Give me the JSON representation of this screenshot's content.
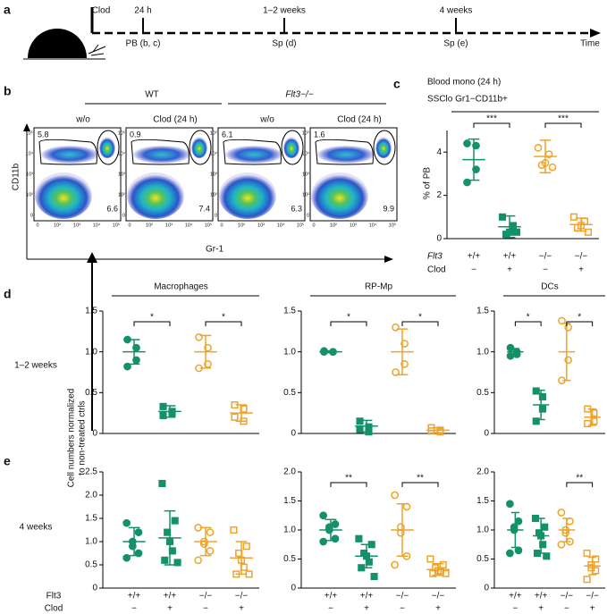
{
  "panel_labels": [
    "a",
    "b",
    "c",
    "d",
    "e"
  ],
  "timeline": {
    "top_labels": [
      "Clod",
      "24 h",
      "1–2 weeks",
      "4 weeks"
    ],
    "bottom_labels": [
      "PB (b, c)",
      "Sp (d)",
      "Sp (e)",
      "Time"
    ]
  },
  "flow": {
    "groups": [
      "WT",
      "Flt3−/−"
    ],
    "conditions": [
      "w/o",
      "Clod (24 h)",
      "w/o",
      "Clod (24 h)"
    ],
    "gates": [
      [
        5.8,
        6.6
      ],
      [
        0.9,
        7.4
      ],
      [
        6.1,
        6.3
      ],
      [
        1.6,
        9.9
      ]
    ],
    "y_label": "CD11b",
    "x_label": "Gr-1",
    "x_ticks": [
      "0",
      "10²",
      "10³",
      "10⁴",
      "10⁵"
    ],
    "y_ticks": [
      "10⁵",
      "10⁴",
      "10³",
      "10²",
      "0"
    ]
  },
  "row_labels": [
    "1–2 weeks",
    "4 weeks"
  ],
  "y_label_lines": [
    "Cell numbers normalized",
    "to non-treated ctrls"
  ],
  "x_row_names": [
    "Flt3",
    "Clod"
  ],
  "chart_data": [
    {
      "type": "scatter",
      "title": "Blood mono (24 h)",
      "subtitle": "SSClo Gr1−CD11b+",
      "y_label": "% of PB",
      "ylim": [
        0,
        5
      ],
      "yticks": [
        0,
        2,
        4
      ],
      "x_row_names": [
        "Flt3",
        "Clod"
      ],
      "x_labels": [
        [
          "+/+",
          "+/+",
          "−/−",
          "−/−"
        ],
        [
          "−",
          "+",
          "−",
          "+"
        ]
      ],
      "series": [
        {
          "color": "#14906a",
          "marker": "circle",
          "filled": true,
          "values": [
            4.4,
            4.3,
            3.2,
            2.6
          ],
          "mean": 3.65,
          "sd": 0.95
        },
        {
          "color": "#14906a",
          "marker": "square",
          "filled": true,
          "values": [
            1.0,
            0.6,
            0.3,
            0.2,
            0.3
          ],
          "mean": 0.55,
          "sd": 0.5
        },
        {
          "color": "#f0a32a",
          "marker": "circle",
          "filled": false,
          "values": [
            4.2,
            3.9,
            3.5,
            3.4,
            3.3
          ],
          "mean": 3.8,
          "sd": 0.75
        },
        {
          "color": "#f0a32a",
          "marker": "square",
          "filled": false,
          "values": [
            1.0,
            0.8,
            0.6,
            0.5,
            0.3
          ],
          "mean": 0.65,
          "sd": 0.3
        }
      ],
      "brackets": [
        {
          "groups": [
            0,
            1
          ],
          "label": "***"
        },
        {
          "groups": [
            2,
            3
          ],
          "label": "***"
        }
      ]
    },
    {
      "type": "scatter",
      "title": "Macrophages",
      "ylim": [
        0,
        1.5
      ],
      "yticks": [
        0,
        0.5,
        {
          "value": 1,
          "label": "1.0"
        },
        1.5
      ],
      "series": [
        {
          "color": "#14906a",
          "marker": "circle",
          "filled": true,
          "values": [
            1.15,
            1.05,
            0.9,
            0.82
          ],
          "mean": 1.0,
          "sd": 0.15
        },
        {
          "color": "#14906a",
          "marker": "square",
          "filled": true,
          "values": [
            0.33,
            0.27,
            0.25,
            0.22
          ],
          "mean": 0.27,
          "sd": 0.07
        },
        {
          "color": "#f0a32a",
          "marker": "circle",
          "filled": false,
          "values": [
            1.18,
            1.05,
            0.85,
            0.8
          ],
          "mean": 1.0,
          "sd": 0.2
        },
        {
          "color": "#f0a32a",
          "marker": "square",
          "filled": false,
          "values": [
            0.35,
            0.3,
            0.15,
            0.2
          ],
          "mean": 0.25,
          "sd": 0.1
        }
      ],
      "brackets": [
        {
          "groups": [
            0,
            1
          ],
          "label": "*"
        },
        {
          "groups": [
            2,
            3
          ],
          "label": "*"
        }
      ]
    },
    {
      "type": "scatter",
      "title": "RP-Mp",
      "ylim": [
        0,
        1.5
      ],
      "yticks": [
        0,
        0.5,
        {
          "value": 1,
          "label": "1.0"
        },
        1.5
      ],
      "series": [
        {
          "color": "#14906a",
          "marker": "circle",
          "filled": true,
          "values": [
            1.0,
            1.0,
            1.0,
            1.01
          ],
          "mean": 1.0,
          "sd": 0.01
        },
        {
          "color": "#14906a",
          "marker": "square",
          "filled": true,
          "values": [
            0.15,
            0.08,
            0.02,
            0.05
          ],
          "mean": 0.09,
          "sd": 0.07
        },
        {
          "color": "#f0a32a",
          "marker": "circle",
          "filled": false,
          "values": [
            1.3,
            1.1,
            0.85,
            0.75
          ],
          "mean": 1.0,
          "sd": 0.28
        },
        {
          "color": "#f0a32a",
          "marker": "square",
          "filled": false,
          "values": [
            0.07,
            0.04,
            0.02,
            0.03
          ],
          "mean": 0.04,
          "sd": 0.03
        }
      ],
      "brackets": [
        {
          "groups": [
            0,
            1
          ],
          "label": "*"
        },
        {
          "groups": [
            2,
            3
          ],
          "label": "*"
        }
      ]
    },
    {
      "type": "scatter",
      "title": "DCs",
      "ylim": [
        0,
        1.5
      ],
      "yticks": [
        0,
        0.5,
        {
          "value": 1,
          "label": "1.0"
        },
        1.5
      ],
      "series": [
        {
          "color": "#14906a",
          "marker": "circle",
          "filled": true,
          "values": [
            1.05,
            1.0,
            0.97,
            0.95
          ],
          "mean": 1.0,
          "sd": 0.04
        },
        {
          "color": "#14906a",
          "marker": "square",
          "filled": true,
          "values": [
            0.52,
            0.45,
            0.3,
            0.15
          ],
          "mean": 0.35,
          "sd": 0.18
        },
        {
          "color": "#f0a32a",
          "marker": "circle",
          "filled": false,
          "values": [
            1.38,
            1.3,
            0.9,
            0.65
          ],
          "mean": 1.0,
          "sd": 0.35
        },
        {
          "color": "#f0a32a",
          "marker": "square",
          "filled": false,
          "values": [
            0.3,
            0.25,
            0.15,
            0.12
          ],
          "mean": 0.2,
          "sd": 0.1
        }
      ],
      "brackets": [
        {
          "groups": [
            0,
            1
          ],
          "label": "*"
        },
        {
          "groups": [
            2,
            3
          ],
          "label": "*"
        }
      ]
    },
    {
      "type": "scatter",
      "ylim": [
        0,
        2.5
      ],
      "yticks": [
        0,
        0.5,
        {
          "value": 1,
          "label": "1.0"
        },
        1.5,
        {
          "value": 2,
          "label": "2.0"
        },
        2.5
      ],
      "x_labels": [
        [
          "+/+",
          "+/+",
          "−/−",
          "−/−"
        ],
        [
          "−",
          "+",
          "−",
          "+"
        ]
      ],
      "series": [
        {
          "color": "#14906a",
          "marker": "circle",
          "filled": true,
          "values": [
            1.4,
            1.2,
            1.0,
            0.9,
            0.75,
            0.65
          ],
          "mean": 1.0,
          "sd": 0.3
        },
        {
          "color": "#14906a",
          "marker": "square",
          "filled": true,
          "values": [
            2.25,
            1.45,
            1.2,
            1.0,
            0.8,
            0.6,
            0.55
          ],
          "mean": 1.08,
          "sd": 0.58
        },
        {
          "color": "#f0a32a",
          "marker": "circle",
          "filled": false,
          "values": [
            1.3,
            1.2,
            1.0,
            0.95,
            0.8,
            0.6
          ],
          "mean": 1.0,
          "sd": 0.3
        },
        {
          "color": "#f0a32a",
          "marker": "square",
          "filled": false,
          "values": [
            1.25,
            0.9,
            0.75,
            0.6,
            0.45,
            0.3,
            0.3
          ],
          "mean": 0.65,
          "sd": 0.35
        }
      ],
      "brackets": []
    },
    {
      "type": "scatter",
      "ylim": [
        0,
        2
      ],
      "yticks": [
        0,
        0.5,
        {
          "value": 1,
          "label": "1.0"
        },
        1.5,
        {
          "value": 2,
          "label": "2.0"
        }
      ],
      "x_labels": [
        [
          "+/+",
          "+/+",
          "−/−",
          "−/−"
        ],
        [
          "−",
          "+",
          "−",
          "+"
        ]
      ],
      "series": [
        {
          "color": "#14906a",
          "marker": "circle",
          "filled": true,
          "values": [
            1.25,
            1.1,
            1.05,
            1.0,
            0.85,
            0.8
          ],
          "mean": 1.0,
          "sd": 0.18
        },
        {
          "color": "#14906a",
          "marker": "square",
          "filled": true,
          "values": [
            0.85,
            0.75,
            0.6,
            0.55,
            0.45,
            0.35,
            0.2
          ],
          "mean": 0.55,
          "sd": 0.2
        },
        {
          "color": "#f0a32a",
          "marker": "circle",
          "filled": false,
          "values": [
            1.6,
            1.4,
            1.05,
            0.95,
            0.55,
            0.4
          ],
          "mean": 1.0,
          "sd": 0.45
        },
        {
          "color": "#f0a32a",
          "marker": "square",
          "filled": false,
          "values": [
            0.5,
            0.4,
            0.35,
            0.3,
            0.28,
            0.25,
            0.25
          ],
          "mean": 0.32,
          "sd": 0.1
        }
      ],
      "brackets": [
        {
          "groups": [
            0,
            1
          ],
          "label": "**"
        },
        {
          "groups": [
            2,
            3
          ],
          "label": "**"
        }
      ]
    },
    {
      "type": "scatter",
      "ylim": [
        0,
        2
      ],
      "yticks": [
        0,
        0.5,
        {
          "value": 1,
          "label": "1.0"
        },
        1.5,
        {
          "value": 2,
          "label": "2.0"
        }
      ],
      "x_labels": [
        [
          "+/+",
          "+/+",
          "−/−",
          "−/−"
        ],
        [
          "−",
          "+",
          "−",
          "+"
        ]
      ],
      "series": [
        {
          "color": "#14906a",
          "marker": "circle",
          "filled": true,
          "values": [
            1.45,
            1.15,
            1.05,
            1.0,
            0.65,
            0.6
          ],
          "mean": 1.0,
          "sd": 0.3
        },
        {
          "color": "#14906a",
          "marker": "square",
          "filled": true,
          "values": [
            1.2,
            1.05,
            0.95,
            0.9,
            0.75,
            0.6,
            0.55
          ],
          "mean": 0.9,
          "sd": 0.3
        },
        {
          "color": "#f0a32a",
          "marker": "circle",
          "filled": false,
          "values": [
            1.3,
            1.15,
            1.0,
            0.95,
            0.8,
            0.75
          ],
          "mean": 1.0,
          "sd": 0.2
        },
        {
          "color": "#f0a32a",
          "marker": "square",
          "filled": false,
          "values": [
            0.6,
            0.5,
            0.4,
            0.35,
            0.3,
            0.15
          ],
          "mean": 0.38,
          "sd": 0.15
        }
      ],
      "brackets": [
        {
          "groups": [
            2,
            3
          ],
          "label": "**"
        }
      ]
    }
  ]
}
